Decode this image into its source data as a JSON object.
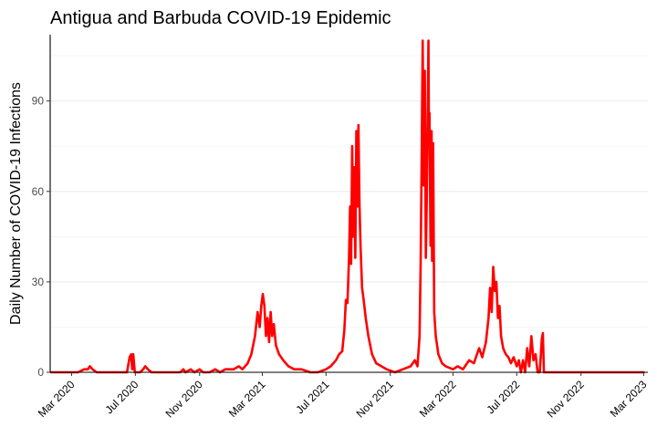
{
  "chart_data": {
    "type": "line",
    "title": "Antigua and Barbuda COVID-19 Epidemic",
    "xlabel": "",
    "ylabel": "Daily Number of COVID-19 Infections",
    "x_range": [
      "2020-01-20",
      "2023-03-09"
    ],
    "ylim": [
      0,
      112
    ],
    "y_ticks": [
      0,
      30,
      60,
      90
    ],
    "x_ticks": [
      {
        "date": "2020-03-01",
        "label": "Mar 2020"
      },
      {
        "date": "2020-07-01",
        "label": "Jul 2020"
      },
      {
        "date": "2020-11-01",
        "label": "Nov 2020"
      },
      {
        "date": "2021-03-01",
        "label": "Mar 2021"
      },
      {
        "date": "2021-07-01",
        "label": "Jul 2021"
      },
      {
        "date": "2021-11-01",
        "label": "Nov 2021"
      },
      {
        "date": "2022-03-01",
        "label": "Mar 2022"
      },
      {
        "date": "2022-07-01",
        "label": "Jul 2022"
      },
      {
        "date": "2022-11-01",
        "label": "Nov 2022"
      },
      {
        "date": "2023-03-01",
        "label": "Mar 2023"
      }
    ],
    "grid": "horizontal",
    "line_color": "#ff0000",
    "series": [
      {
        "points": [
          [
            "2020-01-22",
            0
          ],
          [
            "2020-03-13",
            0
          ],
          [
            "2020-03-25",
            1
          ],
          [
            "2020-04-01",
            1
          ],
          [
            "2020-04-05",
            2
          ],
          [
            "2020-04-10",
            1
          ],
          [
            "2020-04-18",
            0
          ],
          [
            "2020-05-20",
            0
          ],
          [
            "2020-06-15",
            0
          ],
          [
            "2020-06-20",
            5
          ],
          [
            "2020-06-23",
            6
          ],
          [
            "2020-06-25",
            1
          ],
          [
            "2020-06-27",
            6
          ],
          [
            "2020-06-30",
            0
          ],
          [
            "2020-07-10",
            0
          ],
          [
            "2020-07-16",
            1
          ],
          [
            "2020-07-20",
            2
          ],
          [
            "2020-07-25",
            1
          ],
          [
            "2020-08-01",
            0
          ],
          [
            "2020-08-20",
            0
          ],
          [
            "2020-09-05",
            0
          ],
          [
            "2020-09-25",
            0
          ],
          [
            "2020-10-01",
            1
          ],
          [
            "2020-10-05",
            0
          ],
          [
            "2020-10-15",
            1
          ],
          [
            "2020-10-22",
            0
          ],
          [
            "2020-11-01",
            1
          ],
          [
            "2020-11-08",
            0
          ],
          [
            "2020-11-20",
            0
          ],
          [
            "2020-12-01",
            1
          ],
          [
            "2020-12-10",
            0
          ],
          [
            "2020-12-20",
            1
          ],
          [
            "2021-01-05",
            1
          ],
          [
            "2021-01-15",
            2
          ],
          [
            "2021-01-22",
            1
          ],
          [
            "2021-02-01",
            3
          ],
          [
            "2021-02-08",
            6
          ],
          [
            "2021-02-15",
            12
          ],
          [
            "2021-02-20",
            20
          ],
          [
            "2021-02-24",
            15
          ],
          [
            "2021-02-27",
            22
          ],
          [
            "2021-03-02",
            26
          ],
          [
            "2021-03-05",
            22
          ],
          [
            "2021-03-08",
            12
          ],
          [
            "2021-03-11",
            18
          ],
          [
            "2021-03-14",
            10
          ],
          [
            "2021-03-17",
            20
          ],
          [
            "2021-03-20",
            12
          ],
          [
            "2021-03-23",
            16
          ],
          [
            "2021-03-27",
            9
          ],
          [
            "2021-04-02",
            6
          ],
          [
            "2021-04-10",
            4
          ],
          [
            "2021-04-20",
            2
          ],
          [
            "2021-05-01",
            1
          ],
          [
            "2021-05-15",
            1
          ],
          [
            "2021-06-01",
            0
          ],
          [
            "2021-06-15",
            0
          ],
          [
            "2021-07-01",
            1
          ],
          [
            "2021-07-10",
            2
          ],
          [
            "2021-07-20",
            4
          ],
          [
            "2021-07-26",
            6
          ],
          [
            "2021-08-01",
            7
          ],
          [
            "2021-08-05",
            14
          ],
          [
            "2021-08-08",
            24
          ],
          [
            "2021-08-11",
            23
          ],
          [
            "2021-08-14",
            38
          ],
          [
            "2021-08-16",
            55
          ],
          [
            "2021-08-18",
            36
          ],
          [
            "2021-08-20",
            75
          ],
          [
            "2021-08-22",
            45
          ],
          [
            "2021-08-24",
            68
          ],
          [
            "2021-08-26",
            38
          ],
          [
            "2021-08-28",
            80
          ],
          [
            "2021-08-30",
            55
          ],
          [
            "2021-09-01",
            82
          ],
          [
            "2021-09-03",
            56
          ],
          [
            "2021-09-05",
            42
          ],
          [
            "2021-09-08",
            28
          ],
          [
            "2021-09-11",
            24
          ],
          [
            "2021-09-15",
            18
          ],
          [
            "2021-09-20",
            12
          ],
          [
            "2021-09-27",
            6
          ],
          [
            "2021-10-05",
            3
          ],
          [
            "2021-10-15",
            2
          ],
          [
            "2021-10-25",
            1
          ],
          [
            "2021-11-10",
            0
          ],
          [
            "2021-11-25",
            1
          ],
          [
            "2021-12-10",
            2
          ],
          [
            "2021-12-18",
            4
          ],
          [
            "2021-12-23",
            2
          ],
          [
            "2021-12-27",
            12
          ],
          [
            "2021-12-29",
            35
          ],
          [
            "2021-12-31",
            70
          ],
          [
            "2022-01-02",
            110
          ],
          [
            "2022-01-04",
            62
          ],
          [
            "2022-01-06",
            100
          ],
          [
            "2022-01-08",
            38
          ],
          [
            "2022-01-10",
            60
          ],
          [
            "2022-01-12",
            92
          ],
          [
            "2022-01-13",
            110
          ],
          [
            "2022-01-14",
            75
          ],
          [
            "2022-01-15",
            86
          ],
          [
            "2022-01-17",
            42
          ],
          [
            "2022-01-19",
            80
          ],
          [
            "2022-01-20",
            37
          ],
          [
            "2022-01-22",
            76
          ],
          [
            "2022-01-24",
            20
          ],
          [
            "2022-01-27",
            12
          ],
          [
            "2022-02-01",
            6
          ],
          [
            "2022-02-08",
            3
          ],
          [
            "2022-02-15",
            2
          ],
          [
            "2022-03-01",
            1
          ],
          [
            "2022-03-10",
            2
          ],
          [
            "2022-03-20",
            1
          ],
          [
            "2022-04-01",
            4
          ],
          [
            "2022-04-10",
            3
          ],
          [
            "2022-04-20",
            8
          ],
          [
            "2022-04-26",
            5
          ],
          [
            "2022-05-03",
            10
          ],
          [
            "2022-05-08",
            18
          ],
          [
            "2022-05-11",
            28
          ],
          [
            "2022-05-14",
            20
          ],
          [
            "2022-05-17",
            35
          ],
          [
            "2022-05-20",
            27
          ],
          [
            "2022-05-23",
            30
          ],
          [
            "2022-05-26",
            18
          ],
          [
            "2022-05-29",
            22
          ],
          [
            "2022-06-01",
            12
          ],
          [
            "2022-06-05",
            8
          ],
          [
            "2022-06-10",
            6
          ],
          [
            "2022-06-15",
            5
          ],
          [
            "2022-06-20",
            3
          ],
          [
            "2022-06-25",
            5
          ],
          [
            "2022-07-01",
            2
          ],
          [
            "2022-07-05",
            4
          ],
          [
            "2022-07-09",
            0
          ],
          [
            "2022-07-13",
            4
          ],
          [
            "2022-07-17",
            0
          ],
          [
            "2022-07-21",
            8
          ],
          [
            "2022-07-25",
            2
          ],
          [
            "2022-07-29",
            12
          ],
          [
            "2022-08-02",
            4
          ],
          [
            "2022-08-06",
            6
          ],
          [
            "2022-08-10",
            0
          ],
          [
            "2022-08-14",
            0
          ],
          [
            "2022-08-18",
            11
          ],
          [
            "2022-08-20",
            13
          ],
          [
            "2022-08-22",
            0
          ],
          [
            "2022-08-27",
            0
          ],
          [
            "2022-09-03",
            0
          ],
          [
            "2022-09-15",
            0
          ],
          [
            "2023-03-01",
            0
          ]
        ]
      }
    ]
  }
}
